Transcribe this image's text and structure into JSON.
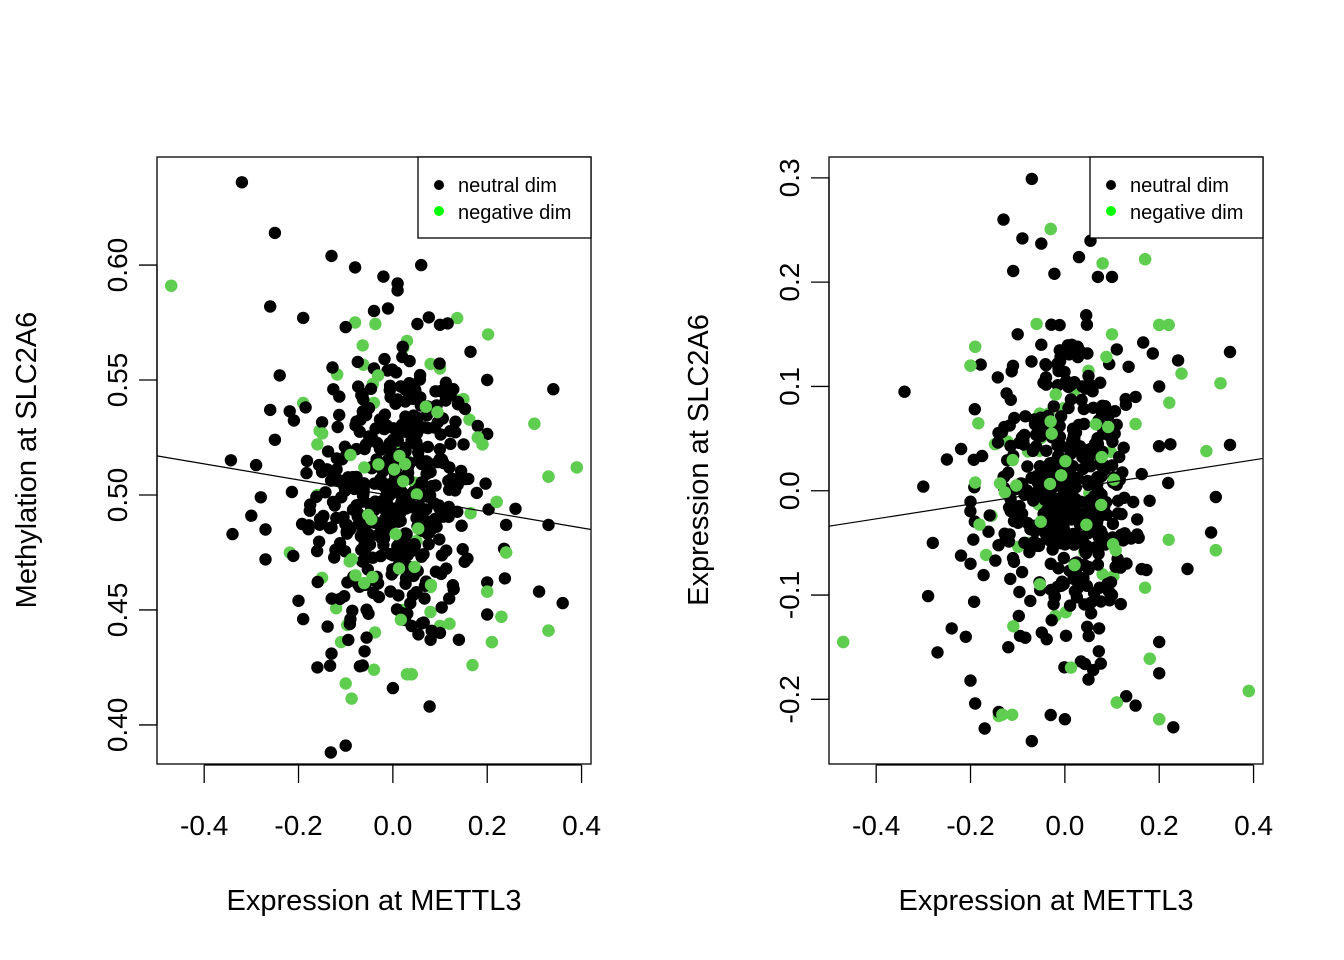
{
  "chart_data": [
    {
      "type": "scatter",
      "id": "left",
      "title": "",
      "xlabel": "Expression at METTL3",
      "ylabel": "Methylation at SLC2A6",
      "xlim": [
        -0.5,
        0.42
      ],
      "ylim": [
        0.383,
        0.647
      ],
      "x_ticks": [
        -0.4,
        -0.2,
        0.0,
        0.2,
        0.4
      ],
      "x_tick_labels": [
        "-0.4",
        "-0.2",
        "0.0",
        "0.2",
        "0.4"
      ],
      "y_ticks": [
        0.4,
        0.45,
        0.5,
        0.55,
        0.6
      ],
      "y_tick_labels": [
        "0.40",
        "0.45",
        "0.50",
        "0.55",
        "0.60"
      ],
      "legend": {
        "position": "top-right",
        "entries": [
          {
            "label": "neutral dim",
            "color": "#000000"
          },
          {
            "label": "negative dim",
            "color": "#00ff00"
          }
        ]
      },
      "regression_line": {
        "x": [
          -0.5,
          0.42
        ],
        "y": [
          0.517,
          0.485
        ]
      },
      "cloud_center": [
        0.0,
        0.5
      ],
      "cloud_spread": [
        0.085,
        0.032
      ],
      "random_points_neutral": 430,
      "random_points_negative": 55,
      "neutral_points": [
        [
          -0.32,
          0.636
        ],
        [
          -0.25,
          0.614
        ],
        [
          -0.26,
          0.582
        ],
        [
          -0.19,
          0.577
        ],
        [
          -0.13,
          0.604
        ],
        [
          -0.08,
          0.599
        ],
        [
          -0.02,
          0.595
        ],
        [
          0.01,
          0.592
        ],
        [
          0.06,
          0.6
        ],
        [
          0.01,
          0.589
        ],
        [
          -0.1,
          0.573
        ],
        [
          -0.04,
          0.58
        ],
        [
          -0.24,
          0.552
        ],
        [
          -0.26,
          0.537
        ],
        [
          -0.25,
          0.524
        ],
        [
          -0.29,
          0.513
        ],
        [
          -0.34,
          0.483
        ],
        [
          -0.28,
          0.499
        ],
        [
          -0.27,
          0.485
        ],
        [
          -0.27,
          0.472
        ],
        [
          -0.3,
          0.491
        ],
        [
          -0.2,
          0.454
        ],
        [
          -0.19,
          0.446
        ],
        [
          -0.16,
          0.425
        ],
        [
          -0.13,
          0.431
        ],
        [
          -0.1,
          0.391
        ],
        [
          -0.09,
          0.446
        ],
        [
          -0.06,
          0.432
        ],
        [
          0.0,
          0.416
        ],
        [
          0.04,
          0.443
        ],
        [
          0.08,
          0.437
        ],
        [
          0.1,
          0.44
        ],
        [
          0.14,
          0.437
        ],
        [
          0.2,
          0.448
        ],
        [
          0.2,
          0.462
        ],
        [
          0.24,
          0.487
        ],
        [
          0.26,
          0.494
        ],
        [
          0.2,
          0.55
        ],
        [
          0.18,
          0.53
        ],
        [
          0.16,
          0.507
        ],
        [
          0.33,
          0.487
        ],
        [
          0.31,
          0.458
        ],
        [
          0.36,
          0.453
        ],
        [
          0.34,
          0.546
        ],
        [
          0.1,
          0.574
        ],
        [
          0.12,
          0.545
        ],
        [
          0.15,
          0.522
        ],
        [
          0.02,
          0.56
        ],
        [
          -0.04,
          0.555
        ],
        [
          -0.06,
          0.52
        ],
        [
          -0.15,
          0.51
        ],
        [
          -0.12,
          0.49
        ],
        [
          0.05,
          0.49
        ],
        [
          0.08,
          0.51
        ],
        [
          -0.02,
          0.505
        ]
      ],
      "negative_points": [
        [
          -0.47,
          0.591
        ],
        [
          0.33,
          0.508
        ],
        [
          0.39,
          0.512
        ],
        [
          0.3,
          0.531
        ],
        [
          0.33,
          0.441
        ],
        [
          0.21,
          0.436
        ],
        [
          0.23,
          0.447
        ],
        [
          0.24,
          0.475
        ],
        [
          0.2,
          0.458
        ],
        [
          0.22,
          0.497
        ],
        [
          0.18,
          0.525
        ],
        [
          0.19,
          0.522
        ],
        [
          0.04,
          0.422
        ],
        [
          0.03,
          0.422
        ],
        [
          -0.1,
          0.418
        ],
        [
          -0.04,
          0.424
        ],
        [
          -0.11,
          0.436
        ],
        [
          0.02,
          0.45
        ],
        [
          0.1,
          0.443
        ],
        [
          0.12,
          0.444
        ],
        [
          -0.19,
          0.54
        ],
        [
          -0.16,
          0.522
        ],
        [
          0.03,
          0.567
        ],
        [
          0.1,
          0.555
        ],
        [
          0.08,
          0.557
        ],
        [
          -0.16,
          0.5
        ],
        [
          -0.15,
          0.464
        ],
        [
          0.05,
          0.48
        ],
        [
          0.08,
          0.46
        ],
        [
          -0.08,
          0.575
        ]
      ]
    },
    {
      "type": "scatter",
      "id": "right",
      "title": "",
      "xlabel": "Expression at METTL3",
      "ylabel": "Expression at SLC2A6",
      "xlim": [
        -0.5,
        0.42
      ],
      "ylim": [
        -0.262,
        0.32
      ],
      "x_ticks": [
        -0.4,
        -0.2,
        0.0,
        0.2,
        0.4
      ],
      "x_tick_labels": [
        "-0.4",
        "-0.2",
        "0.0",
        "0.2",
        "0.4"
      ],
      "y_ticks": [
        -0.2,
        -0.1,
        0.0,
        0.1,
        0.2,
        0.3
      ],
      "y_tick_labels": [
        "-0.2",
        "-0.1",
        "0.0",
        "0.1",
        "0.2",
        "0.3"
      ],
      "legend": {
        "position": "top-right",
        "entries": [
          {
            "label": "neutral dim",
            "color": "#000000"
          },
          {
            "label": "negative dim",
            "color": "#00ff00"
          }
        ]
      },
      "regression_line": {
        "x": [
          -0.5,
          0.42
        ],
        "y": [
          -0.034,
          0.031
        ]
      },
      "cloud_center": [
        0.0,
        0.0
      ],
      "cloud_spread": [
        0.085,
        0.068
      ],
      "random_points_neutral": 430,
      "random_points_negative": 55,
      "neutral_points": [
        [
          -0.07,
          0.299
        ],
        [
          -0.13,
          0.26
        ],
        [
          -0.05,
          0.237
        ],
        [
          -0.09,
          0.242
        ],
        [
          0.03,
          0.224
        ],
        [
          0.07,
          0.205
        ],
        [
          0.1,
          0.205
        ],
        [
          -0.34,
          0.095
        ],
        [
          -0.3,
          0.004
        ],
        [
          -0.28,
          -0.05
        ],
        [
          -0.29,
          -0.101
        ],
        [
          -0.27,
          -0.155
        ],
        [
          -0.24,
          -0.132
        ],
        [
          -0.21,
          -0.14
        ],
        [
          -0.2,
          -0.182
        ],
        [
          -0.19,
          -0.204
        ],
        [
          -0.17,
          -0.228
        ],
        [
          -0.14,
          -0.212
        ],
        [
          -0.07,
          -0.24
        ],
        [
          -0.03,
          -0.215
        ],
        [
          0.0,
          -0.219
        ],
        [
          0.05,
          -0.181
        ],
        [
          0.06,
          -0.172
        ],
        [
          0.13,
          -0.197
        ],
        [
          0.15,
          -0.206
        ],
        [
          0.2,
          -0.145
        ],
        [
          0.2,
          -0.175
        ],
        [
          0.26,
          -0.075
        ],
        [
          0.31,
          -0.04
        ],
        [
          0.32,
          -0.006
        ],
        [
          0.35,
          0.044
        ],
        [
          0.35,
          0.133
        ],
        [
          0.24,
          0.125
        ],
        [
          0.2,
          0.1
        ],
        [
          0.15,
          0.09
        ],
        [
          -0.22,
          0.04
        ],
        [
          -0.25,
          0.03
        ],
        [
          -0.2,
          -0.07
        ],
        [
          -0.1,
          0.15
        ],
        [
          -0.05,
          0.14
        ],
        [
          0.05,
          0.11
        ],
        [
          0.1,
          -0.1
        ],
        [
          -0.12,
          -0.15
        ],
        [
          0.0,
          -0.05
        ],
        [
          0.02,
          0.05
        ]
      ],
      "negative_points": [
        [
          -0.47,
          -0.145
        ],
        [
          0.39,
          -0.192
        ],
        [
          0.33,
          0.103
        ],
        [
          0.32,
          -0.057
        ],
        [
          0.2,
          0.159
        ],
        [
          0.22,
          0.159
        ],
        [
          0.17,
          0.222
        ],
        [
          0.08,
          0.218
        ],
        [
          -0.03,
          0.251
        ],
        [
          -0.19,
          0.138
        ],
        [
          -0.2,
          0.12
        ],
        [
          0.11,
          -0.203
        ],
        [
          0.18,
          -0.161
        ],
        [
          0.2,
          -0.219
        ],
        [
          -0.14,
          -0.216
        ],
        [
          0.17,
          -0.093
        ],
        [
          0.22,
          -0.047
        ],
        [
          0.3,
          0.038
        ],
        [
          0.15,
          0.064
        ],
        [
          0.1,
          0.15
        ],
        [
          -0.06,
          0.16
        ],
        [
          0.05,
          0.115
        ],
        [
          -0.02,
          -0.12
        ],
        [
          0.08,
          -0.08
        ],
        [
          -0.08,
          -0.05
        ]
      ]
    }
  ]
}
